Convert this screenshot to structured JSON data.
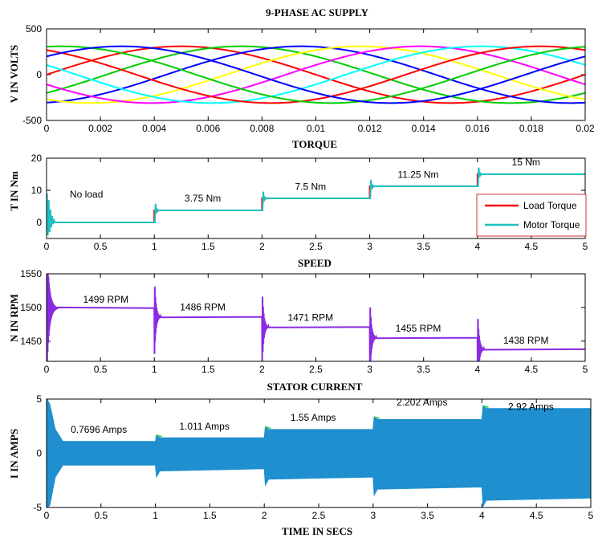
{
  "chart_data": [
    {
      "id": "supply",
      "type": "line",
      "title": "9-PHASE AC SUPPLY",
      "ylabel": "V IN VOLTS",
      "xlabel": "",
      "xlim": [
        0,
        0.02
      ],
      "ylim": [
        -500,
        500
      ],
      "x_ticks": [
        "0",
        "0.002",
        "0.004",
        "0.006",
        "0.008",
        "0.01",
        "0.012",
        "0.014",
        "0.016",
        "0.018",
        "0.02"
      ],
      "y_ticks": [
        "-500",
        "0",
        "500"
      ],
      "frequency_hz": 50,
      "amplitude": 310,
      "series": [
        {
          "phase_deg": 0,
          "color": "#ff0000"
        },
        {
          "phase_deg": 40,
          "color": "#00cc00"
        },
        {
          "phase_deg": 80,
          "color": "#0000ff"
        },
        {
          "phase_deg": 120,
          "color": "#ffff00"
        },
        {
          "phase_deg": 160,
          "color": "#ff00ff"
        },
        {
          "phase_deg": 200,
          "color": "#00ffff"
        },
        {
          "phase_deg": 240,
          "color": "#ff0000"
        },
        {
          "phase_deg": 280,
          "color": "#00cc00"
        },
        {
          "phase_deg": 320,
          "color": "#0000ff"
        }
      ]
    },
    {
      "id": "torque",
      "type": "line",
      "title": "TORQUE",
      "ylabel": "T IN Nm",
      "xlabel": "",
      "xlim": [
        0,
        5
      ],
      "ylim": [
        -5,
        20
      ],
      "x_ticks": [
        "0",
        "0.5",
        "1",
        "1.5",
        "2",
        "2.5",
        "3",
        "3.5",
        "4",
        "4.5",
        "5"
      ],
      "y_ticks": [
        "0",
        "10",
        "20"
      ],
      "steps": [
        {
          "t0": 0,
          "t1": 1,
          "value": 0
        },
        {
          "t0": 1,
          "t1": 2,
          "value": 3.75
        },
        {
          "t0": 2,
          "t1": 3,
          "value": 7.5
        },
        {
          "t0": 3,
          "t1": 4,
          "value": 11.25
        },
        {
          "t0": 4,
          "t1": 5,
          "value": 15
        }
      ],
      "series": [
        {
          "name": "Load Torque",
          "color": "#ff0000"
        },
        {
          "name": "Motor Torque",
          "color": "#1fbfbf"
        }
      ],
      "legend_position": "right",
      "annotations": [
        {
          "text": "No load",
          "x": 0.37,
          "y": 7.7
        },
        {
          "text": "3.75 Nm",
          "x": 1.45,
          "y": 6.5
        },
        {
          "text": "7.5 Nm",
          "x": 2.45,
          "y": 10.1
        },
        {
          "text": "11.25 Nm",
          "x": 3.45,
          "y": 13.9
        },
        {
          "text": "15 Nm",
          "x": 4.45,
          "y": 17.8
        }
      ]
    },
    {
      "id": "speed",
      "type": "line",
      "title": "SPEED",
      "ylabel": "N IN RPM",
      "xlabel": "",
      "xlim": [
        0,
        5
      ],
      "ylim": [
        1420,
        1550
      ],
      "x_ticks": [
        "0",
        "0.5",
        "1",
        "1.5",
        "2",
        "2.5",
        "3",
        "3.5",
        "4",
        "4.5",
        "5"
      ],
      "y_ticks": [
        "1450",
        "1500",
        "1550"
      ],
      "color": "#8a2be2",
      "steps": [
        {
          "t0": 0,
          "t1": 1,
          "value": 1499
        },
        {
          "t0": 1,
          "t1": 2,
          "value": 1486
        },
        {
          "t0": 2,
          "t1": 3,
          "value": 1471
        },
        {
          "t0": 3,
          "t1": 4,
          "value": 1455
        },
        {
          "t0": 4,
          "t1": 5,
          "value": 1438
        }
      ],
      "annotations": [
        {
          "text": "1499 RPM",
          "x": 0.55,
          "y": 1507
        },
        {
          "text": "1486 RPM",
          "x": 1.45,
          "y": 1496
        },
        {
          "text": "1471 RPM",
          "x": 2.45,
          "y": 1480
        },
        {
          "text": "1455 RPM",
          "x": 3.45,
          "y": 1464
        },
        {
          "text": "1438 RPM",
          "x": 4.45,
          "y": 1446
        }
      ]
    },
    {
      "id": "current",
      "type": "area",
      "title": "STATOR CURRENT",
      "ylabel": "I IN AMPS",
      "xlabel": "TIME IN SECS",
      "xlim": [
        0,
        5
      ],
      "ylim": [
        -5,
        5
      ],
      "x_ticks": [
        "0",
        "0.5",
        "1",
        "1.5",
        "2",
        "2.5",
        "3",
        "3.5",
        "4",
        "4.5",
        "5"
      ],
      "y_ticks": [
        "-5",
        "0",
        "5"
      ],
      "color": "#1f8fcf",
      "steps": [
        {
          "t0": 0,
          "t1": 1,
          "value": 1.09
        },
        {
          "t0": 1,
          "t1": 2,
          "value": 1.43
        },
        {
          "t0": 2,
          "t1": 3,
          "value": 2.19
        },
        {
          "t0": 3,
          "t1": 4,
          "value": 3.11
        },
        {
          "t0": 4,
          "t1": 5,
          "value": 4.13
        }
      ],
      "annotations": [
        {
          "text": "0.7696 Amps",
          "x": 0.48,
          "y": 1.9
        },
        {
          "text": "1.011 Amps",
          "x": 1.45,
          "y": 2.2
        },
        {
          "text": "1.55 Amps",
          "x": 2.45,
          "y": 3.0
        },
        {
          "text": "2.202 Amps",
          "x": 3.45,
          "y": 4.4
        },
        {
          "text": "2.92 Amps",
          "x": 4.45,
          "y": 4.0
        }
      ]
    }
  ]
}
